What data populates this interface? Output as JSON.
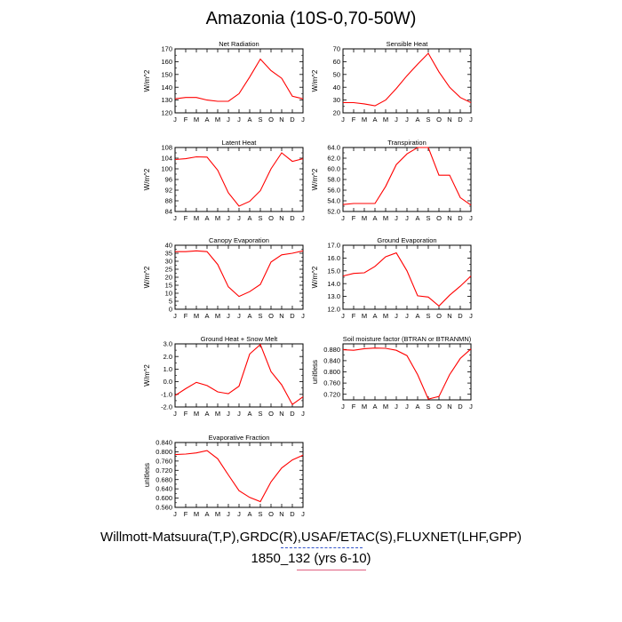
{
  "title": "Amazonia (10S-0,70-50W)",
  "caption": {
    "line1": "Willmott-Matsuura(T,P),GRDC(R),USAF/ETAC(S),FLUXNET(LHF,GPP)",
    "line2": "1850_132 (yrs 6-10)"
  },
  "colors": {
    "series": "#ff0000",
    "axes": "#000000"
  },
  "chart_data": [
    {
      "type": "line",
      "title": "Net Radiation",
      "ylabel": "W/m^2",
      "categories": [
        "J",
        "F",
        "M",
        "A",
        "M",
        "J",
        "J",
        "A",
        "S",
        "O",
        "N",
        "D",
        "J"
      ],
      "ylim": [
        120,
        170
      ],
      "yticks": [
        120,
        130,
        140,
        150,
        160,
        170
      ],
      "ytick_labels": [
        "120",
        "130",
        "140",
        "150",
        "160",
        "170"
      ],
      "values": [
        131,
        132,
        132,
        130,
        129,
        129,
        135,
        148,
        162,
        153,
        147,
        133,
        131
      ],
      "grid": false
    },
    {
      "type": "line",
      "title": "Sensible Heat",
      "ylabel": "W/m^2",
      "categories": [
        "J",
        "F",
        "M",
        "A",
        "M",
        "J",
        "J",
        "A",
        "S",
        "O",
        "N",
        "D",
        "J"
      ],
      "ylim": [
        20,
        70
      ],
      "yticks": [
        20,
        30,
        40,
        50,
        60,
        70
      ],
      "ytick_labels": [
        "20",
        "30",
        "40",
        "50",
        "60",
        "70"
      ],
      "values": [
        28,
        28,
        27,
        25.5,
        30,
        39,
        49,
        58,
        66.5,
        52,
        40,
        32,
        28
      ],
      "grid": false
    },
    {
      "type": "line",
      "title": "Latent Heat",
      "ylabel": "W/m^2",
      "categories": [
        "J",
        "F",
        "M",
        "A",
        "M",
        "J",
        "J",
        "A",
        "S",
        "O",
        "N",
        "D",
        "J"
      ],
      "ylim": [
        84,
        108
      ],
      "yticks": [
        84,
        88,
        92,
        96,
        100,
        104,
        108
      ],
      "ytick_labels": [
        "84",
        "88",
        "92",
        "96",
        "100",
        "104",
        "108"
      ],
      "values": [
        103.5,
        103.8,
        104.5,
        104.4,
        99.5,
        91,
        86,
        87.8,
        91.8,
        100,
        106,
        102.8,
        103.8
      ],
      "grid": false
    },
    {
      "type": "line",
      "title": "Transpiration",
      "ylabel": "W/m^2",
      "categories": [
        "J",
        "F",
        "M",
        "A",
        "M",
        "J",
        "J",
        "A",
        "S",
        "O",
        "N",
        "D",
        "J"
      ],
      "ylim": [
        52,
        64
      ],
      "yticks": [
        52,
        54,
        56,
        58,
        60,
        62,
        64
      ],
      "ytick_labels": [
        "52.0",
        "54.0",
        "56.0",
        "58.0",
        "60.0",
        "62.0",
        "64.0"
      ],
      "values": [
        53.3,
        53.5,
        53.5,
        53.5,
        56.7,
        60.8,
        62.8,
        64,
        64,
        58.8,
        58.8,
        54.6,
        53.2
      ],
      "grid": false
    },
    {
      "type": "line",
      "title": "Canopy Evaporation",
      "ylabel": "W/m^2",
      "categories": [
        "J",
        "F",
        "M",
        "A",
        "M",
        "J",
        "J",
        "A",
        "S",
        "O",
        "N",
        "D",
        "J"
      ],
      "ylim": [
        0,
        40
      ],
      "yticks": [
        0,
        5,
        10,
        15,
        20,
        25,
        30,
        35,
        40
      ],
      "ytick_labels": [
        "0",
        "5",
        "10",
        "15",
        "20",
        "25",
        "30",
        "35",
        "40"
      ],
      "values": [
        36,
        36,
        36.5,
        36,
        28,
        14,
        8,
        11,
        15.5,
        29.5,
        34,
        35,
        36.5
      ],
      "grid": false
    },
    {
      "type": "line",
      "title": "Ground Evaporation",
      "ylabel": "W/m^2",
      "categories": [
        "J",
        "F",
        "M",
        "A",
        "M",
        "J",
        "J",
        "A",
        "S",
        "O",
        "N",
        "D",
        "J"
      ],
      "ylim": [
        12,
        17
      ],
      "yticks": [
        12,
        13,
        14,
        15,
        16,
        17
      ],
      "ytick_labels": [
        "12.0",
        "13.0",
        "14.0",
        "15.0",
        "16.0",
        "17.0"
      ],
      "values": [
        14.6,
        14.8,
        14.85,
        15.35,
        16.1,
        16.4,
        15,
        13.05,
        12.95,
        12.25,
        13.1,
        13.8,
        14.6
      ],
      "grid": false
    },
    {
      "type": "line",
      "title": "Ground Heat + Snow Melt",
      "ylabel": "W/m^2",
      "categories": [
        "J",
        "F",
        "M",
        "A",
        "M",
        "J",
        "J",
        "A",
        "S",
        "O",
        "N",
        "D",
        "J"
      ],
      "ylim": [
        -2,
        3
      ],
      "yticks": [
        -2,
        -1,
        0,
        1,
        2,
        3
      ],
      "ytick_labels": [
        "-2.0",
        "-1.0",
        "0.0",
        "1.0",
        "2.0",
        "3.0"
      ],
      "values": [
        -1.1,
        -0.55,
        -0.05,
        -0.3,
        -0.8,
        -0.95,
        -0.35,
        2.2,
        2.95,
        0.8,
        -0.25,
        -1.8,
        -1.2
      ],
      "grid": false
    },
    {
      "type": "line",
      "title": "Soil moisture factor (BTRAN or BTRANMN)",
      "ylabel": "unitless",
      "categories": [
        "J",
        "F",
        "M",
        "A",
        "M",
        "J",
        "J",
        "A",
        "S",
        "O",
        "N",
        "D",
        "J"
      ],
      "ylim": [
        0.7,
        0.9
      ],
      "yticks": [
        0.72,
        0.76,
        0.8,
        0.84,
        0.88
      ],
      "ytick_labels": [
        "0.720",
        "0.760",
        "0.800",
        "0.840",
        "0.880"
      ],
      "values": [
        0.879,
        0.877,
        0.883,
        0.885,
        0.884,
        0.877,
        0.858,
        0.79,
        0.703,
        0.712,
        0.79,
        0.848,
        0.882
      ],
      "grid": false
    },
    {
      "type": "line",
      "title": "Evaporative Fraction",
      "ylabel": "unitless",
      "categories": [
        "J",
        "F",
        "M",
        "A",
        "M",
        "J",
        "J",
        "A",
        "S",
        "O",
        "N",
        "D",
        "J"
      ],
      "ylim": [
        0.56,
        0.84
      ],
      "yticks": [
        0.56,
        0.6,
        0.64,
        0.68,
        0.72,
        0.76,
        0.8,
        0.84
      ],
      "ytick_labels": [
        "0.560",
        "0.600",
        "0.640",
        "0.680",
        "0.720",
        "0.760",
        "0.800",
        "0.840"
      ],
      "values": [
        0.788,
        0.79,
        0.795,
        0.805,
        0.77,
        0.7,
        0.632,
        0.603,
        0.585,
        0.67,
        0.73,
        0.765,
        0.785
      ],
      "grid": false
    }
  ]
}
